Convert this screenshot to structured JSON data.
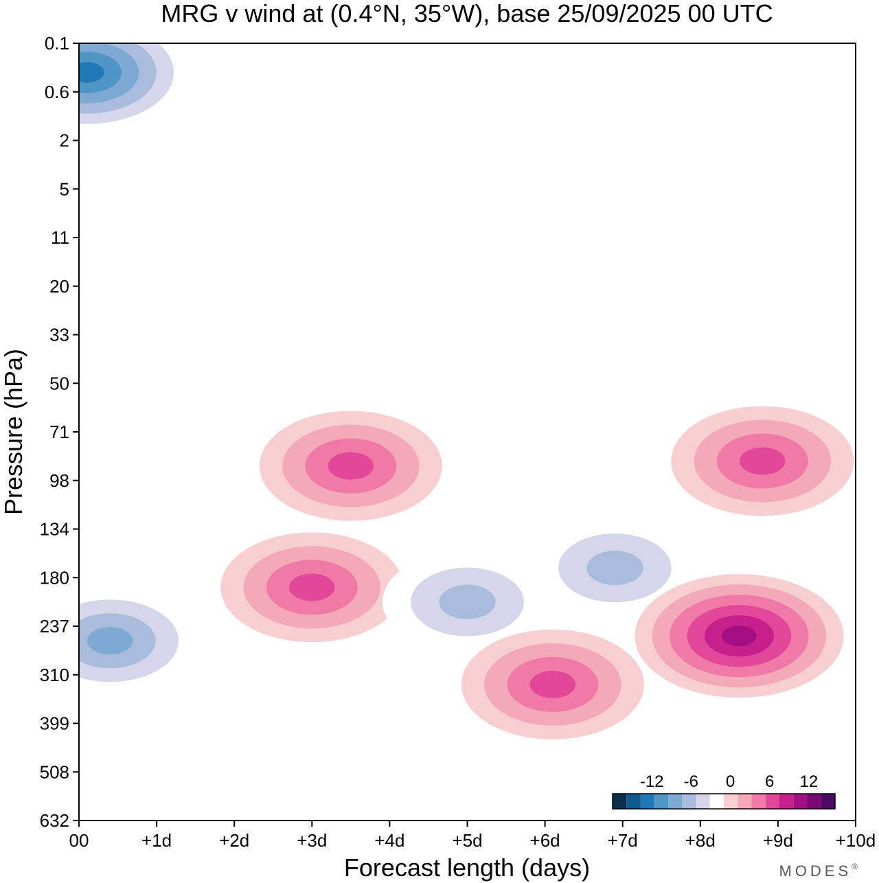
{
  "chart_data": {
    "type": "heatmap",
    "title": "MRG v wind at (0.4°N, 35°W),  base 25/09/2025  00 UTC",
    "xlabel": "Forecast length (days)",
    "ylabel": "Pressure (hPa)",
    "x_ticks": [
      "00",
      "+1d",
      "+2d",
      "+3d",
      "+4d",
      "+5d",
      "+6d",
      "+7d",
      "+8d",
      "+9d",
      "+10d"
    ],
    "y_ticks": [
      "0.1",
      "0.6",
      "2",
      "5",
      "11",
      "20",
      "33",
      "50",
      "71",
      "98",
      "134",
      "180",
      "237",
      "310",
      "399",
      "508",
      "632"
    ],
    "xlim": [
      0,
      10
    ],
    "y_levels": 16,
    "colorbar": {
      "labels": [
        -12,
        -6,
        0,
        6,
        12
      ],
      "levels": [
        -16,
        -14,
        -12,
        -10,
        -8,
        -6,
        -4,
        -2,
        2,
        4,
        6,
        8,
        10,
        12,
        14,
        16
      ],
      "colors": [
        "#0b2f4a",
        "#0e5a8c",
        "#1f79b5",
        "#4f95c6",
        "#7ea9d2",
        "#a9bcdc",
        "#d4d6ea",
        "#ffffff",
        "#f8cfd0",
        "#f4a9b8",
        "#f07aa6",
        "#e3479a",
        "#c71f8b",
        "#a30f80",
        "#7a0a73",
        "#4a0a5e"
      ]
    },
    "features": [
      {
        "label": "neg-surface-column",
        "x": 0.4,
        "y": 12.3,
        "value": -8
      },
      {
        "label": "neg-top-left",
        "x": 0.1,
        "y": 0.6,
        "value": -12
      },
      {
        "label": "pos-upper-ridge",
        "x": 3.5,
        "y": 8.7,
        "value": 8
      },
      {
        "label": "pos-mid-blob",
        "x": 3.0,
        "y": 11.2,
        "value": 8
      },
      {
        "label": "neg-mid-blob",
        "x": 5.0,
        "y": 11.5,
        "value": -6
      },
      {
        "label": "neg-mid-right",
        "x": 6.9,
        "y": 10.8,
        "value": -6
      },
      {
        "label": "pos-lower-right-max",
        "x": 8.5,
        "y": 12.2,
        "value": 12
      },
      {
        "label": "pos-lower-middle",
        "x": 6.1,
        "y": 13.2,
        "value": 8
      },
      {
        "label": "pos-71hPa-right",
        "x": 8.8,
        "y": 8.6,
        "value": 8
      }
    ]
  },
  "brand": "MODES",
  "brand_mark": "®"
}
